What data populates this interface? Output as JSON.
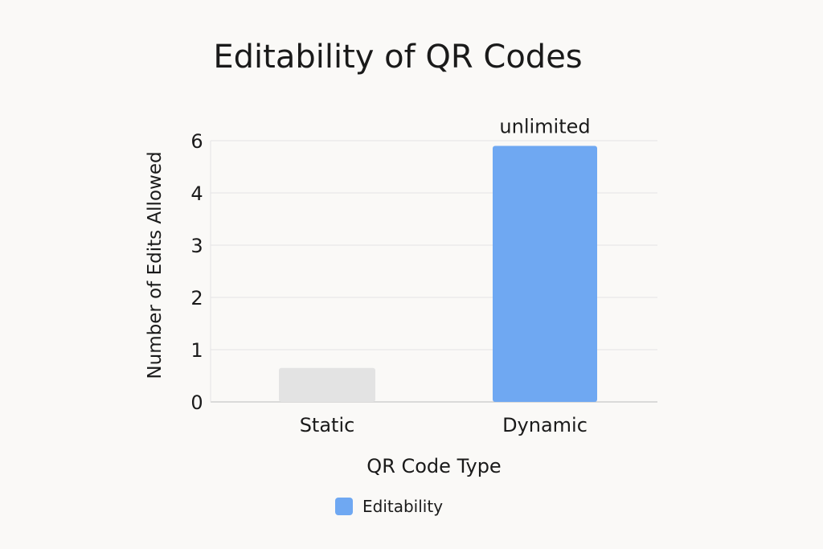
{
  "chart_data": {
    "type": "bar",
    "title": "Editability of QR Codes",
    "xlabel": "QR Code Type",
    "ylabel": "Number of Edits Allowed",
    "y_tick_labels": [
      "0",
      "1",
      "2",
      "3",
      "4",
      "6"
    ],
    "y_tick_values": [
      0,
      1,
      2,
      3,
      4,
      6
    ],
    "ylim": [
      0,
      6
    ],
    "grid": true,
    "categories": [
      "Static",
      "Dynamic"
    ],
    "values": [
      0.65,
      5.8
    ],
    "bar_colors": [
      "#e3e3e3",
      "#6fa8f2"
    ],
    "data_labels": [
      "",
      "unlimited"
    ],
    "legend": {
      "entries": [
        {
          "label": "Editability",
          "color": "#6fa8f2"
        }
      ],
      "placement": "bottom-center"
    }
  }
}
